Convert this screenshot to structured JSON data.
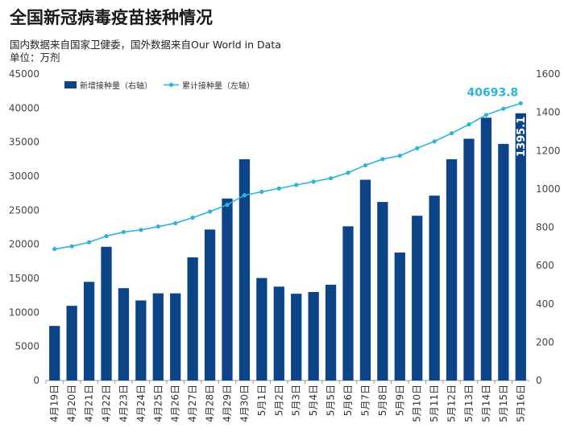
{
  "chart_data": {
    "type": "bar",
    "title": "全国新冠病毒疫苗接种情况",
    "subtitle": "国内数据来自国家卫健委，国外数据来自Our World in Data",
    "unit_label": "单位：万剂",
    "categories": [
      "4月19日",
      "4月20日",
      "4月21日",
      "4月22日",
      "4月23日",
      "4月24日",
      "4月25日",
      "4月26日",
      "4月27日",
      "4月28日",
      "4月29日",
      "4月30日",
      "5月1日",
      "5月2日",
      "5月3日",
      "5月4日",
      "5月5日",
      "5月6日",
      "5月7日",
      "5月8日",
      "5月9日",
      "5月10日",
      "5月11日",
      "5月12日",
      "5月13日",
      "5月14日",
      "5月15日",
      "5月16日"
    ],
    "series": [
      {
        "name": "新增接种量（右轴）",
        "kind": "bar",
        "axis": "right",
        "color": "#0d4488",
        "values": [
          285,
          390,
          515,
          698,
          482,
          418,
          455,
          455,
          643,
          788,
          950,
          1155,
          535,
          490,
          453,
          462,
          500,
          805,
          1048,
          932,
          668,
          860,
          965,
          1155,
          1262,
          1372,
          1235,
          1395.1
        ]
      },
      {
        "name": "累计接种量（左轴）",
        "kind": "line",
        "axis": "left",
        "color": "#2bb5d8",
        "values": [
          19300,
          19700,
          20300,
          21200,
          21800,
          22100,
          22600,
          23100,
          23900,
          24800,
          25800,
          27200,
          27700,
          28200,
          28700,
          29200,
          29700,
          30500,
          31600,
          32500,
          33000,
          34100,
          35100,
          36300,
          37600,
          39000,
          39900,
          40693.8
        ]
      }
    ],
    "y_left": {
      "min": 0,
      "max": 45000,
      "ticks": [
        "0",
        "5000",
        "10000",
        "15000",
        "20000",
        "25000",
        "30000",
        "35000",
        "40000",
        "45000"
      ]
    },
    "y_right": {
      "min": 0,
      "max": 1600,
      "ticks": [
        "0",
        "200",
        "400",
        "600",
        "800",
        "1000",
        "1200",
        "1400",
        "1600"
      ]
    },
    "annotations": {
      "line_last": "40693.8",
      "bar_last": "1395.1"
    },
    "legend_position": "top-left",
    "grid": false
  }
}
